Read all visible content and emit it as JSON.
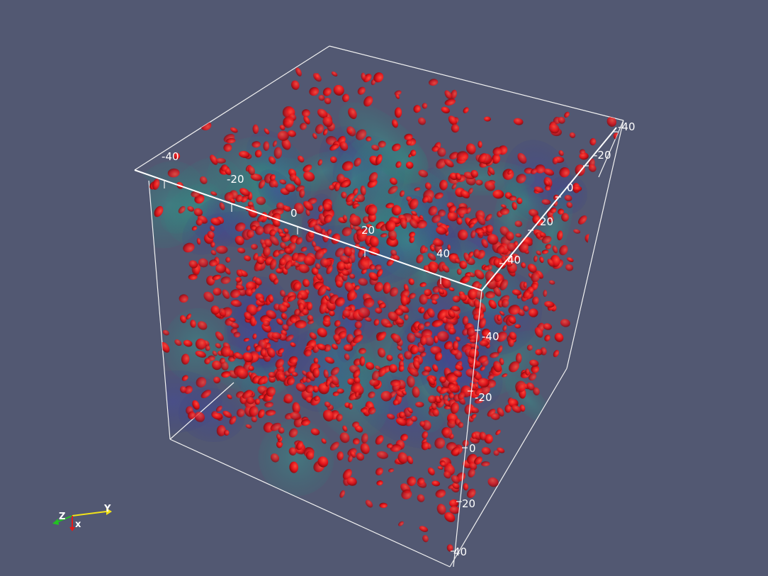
{
  "scene": {
    "background": "#525872",
    "particle_color": "#e0121a",
    "surface_colors": [
      "#2f7f7a",
      "#3b3f86"
    ],
    "frame_color": "#ffffff"
  },
  "axes": {
    "top_edge_ticks": [
      "-40",
      "-20",
      "0",
      "20",
      "40"
    ],
    "right_edge_ticks": [
      "-40",
      "-20",
      "0",
      "20",
      "40"
    ],
    "vertical_edge_ticks": [
      "-40",
      "-20",
      "0",
      "20",
      "40"
    ]
  },
  "orientation_widget": {
    "y_label": "Y",
    "z_label": "Z",
    "x_label": "x",
    "y_color": "#f2e21a",
    "z_color": "#22c322",
    "x_color": "#e21a1a"
  }
}
